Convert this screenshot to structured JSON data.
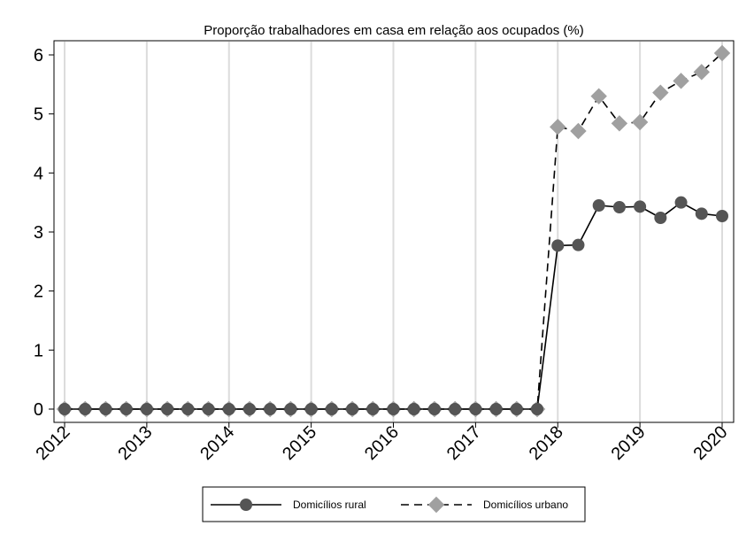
{
  "chart_data": {
    "type": "line",
    "title": "Proporção trabalhadores em casa em relação aos ocupados (%)",
    "xlabel": "",
    "ylabel": "",
    "x_tick_labels": [
      "2012",
      "2013",
      "2014",
      "2015",
      "2016",
      "2017",
      "2018",
      "2019",
      "2020"
    ],
    "y_ticks": [
      0,
      1,
      2,
      3,
      4,
      5,
      6
    ],
    "xlim": [
      2012,
      2020.1
    ],
    "ylim": [
      -0.15,
      6.25
    ],
    "grid": "vertical",
    "legend_position": "bottom",
    "x": [
      2012.0,
      2012.25,
      2012.5,
      2012.75,
      2013.0,
      2013.25,
      2013.5,
      2013.75,
      2014.0,
      2014.25,
      2014.5,
      2014.75,
      2015.0,
      2015.25,
      2015.5,
      2015.75,
      2016.0,
      2016.25,
      2016.5,
      2016.75,
      2017.0,
      2017.25,
      2017.5,
      2017.75,
      2018.0,
      2018.25,
      2018.5,
      2018.75,
      2019.0,
      2019.25,
      2019.5,
      2019.75,
      2020.0
    ],
    "series": [
      {
        "name": "Domicílios rural",
        "color": "#555555",
        "marker": "circle",
        "dash": "solid",
        "values": [
          0,
          0,
          0,
          0,
          0,
          0,
          0,
          0,
          0,
          0,
          0,
          0,
          0,
          0,
          0,
          0,
          0,
          0,
          0,
          0,
          0,
          0,
          0,
          0,
          2.77,
          2.78,
          3.45,
          3.42,
          3.43,
          3.24,
          3.5,
          3.31,
          3.27
        ]
      },
      {
        "name": "Domicílios urbano",
        "color": "#a0a0a0",
        "marker": "diamond",
        "dash": "dashed",
        "values": [
          0,
          0,
          0,
          0,
          0,
          0,
          0,
          0,
          0,
          0,
          0,
          0,
          0,
          0,
          0,
          0,
          0,
          0,
          0,
          0,
          0,
          0,
          0,
          0,
          4.78,
          4.71,
          5.3,
          4.84,
          4.86,
          5.36,
          5.56,
          5.71,
          6.03
        ]
      }
    ]
  }
}
